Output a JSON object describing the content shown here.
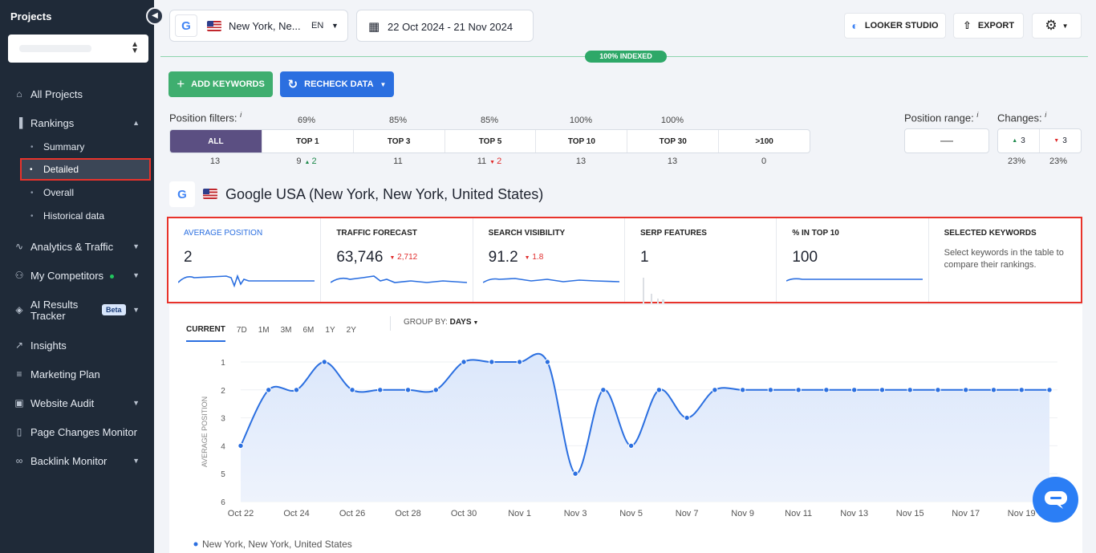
{
  "sidebar": {
    "title": "Projects",
    "items": [
      {
        "label": "All Projects",
        "icon": "home-icon"
      },
      {
        "label": "Rankings",
        "icon": "bar-chart-icon"
      },
      {
        "label": "Summary"
      },
      {
        "label": "Detailed"
      },
      {
        "label": "Overall"
      },
      {
        "label": "Historical data"
      },
      {
        "label": "Analytics & Traffic",
        "icon": "analytics-icon"
      },
      {
        "label": "My Competitors",
        "icon": "competitors-icon"
      },
      {
        "label": "AI Results",
        "label2": "Tracker",
        "badge": "Beta",
        "icon": "ai-icon"
      },
      {
        "label": "Insights",
        "icon": "insights-icon"
      },
      {
        "label": "Marketing Plan",
        "icon": "plan-icon"
      },
      {
        "label": "Website Audit",
        "icon": "audit-icon"
      },
      {
        "label": "Page Changes Monitor",
        "icon": "page-icon"
      },
      {
        "label": "Backlink Monitor",
        "icon": "link-icon"
      }
    ]
  },
  "topbar": {
    "location": "New York, Ne...",
    "lang": "EN",
    "date_range": "22 Oct 2024 - 21 Nov 2024",
    "looker": "LOOKER STUDIO",
    "export": "EXPORT",
    "indexed": "100% INDEXED"
  },
  "actions": {
    "add_keywords": "ADD KEYWORDS",
    "recheck": "RECHECK DATA"
  },
  "filters": {
    "label": "Position filters:",
    "info": "i",
    "items": [
      {
        "label": "ALL",
        "pct": "",
        "count": "13"
      },
      {
        "label": "TOP 1",
        "pct": "69%",
        "count": "9",
        "delta": "2",
        "dir": "up"
      },
      {
        "label": "TOP 3",
        "pct": "85%",
        "count": "11"
      },
      {
        "label": "TOP 5",
        "pct": "85%",
        "count": "11",
        "delta": "2",
        "dir": "down"
      },
      {
        "label": "TOP 10",
        "pct": "100%",
        "count": "13"
      },
      {
        "label": "TOP 30",
        "pct": "100%",
        "count": "13"
      },
      {
        "label": ">100",
        "pct": "",
        "count": "0"
      }
    ],
    "range_label": "Position range:",
    "range_value": "—",
    "changes_label": "Changes:",
    "changes_up": "3",
    "changes_down": "3",
    "changes_up_pct": "23%",
    "changes_down_pct": "23%"
  },
  "engine": {
    "title": "Google USA (New York, New York, United States)"
  },
  "metrics": [
    {
      "title": "AVERAGE POSITION",
      "value": "2",
      "active": true
    },
    {
      "title": "TRAFFIC FORECAST",
      "value": "63,746",
      "delta": "2,712"
    },
    {
      "title": "SEARCH VISIBILITY",
      "value": "91.2",
      "delta": "1.8"
    },
    {
      "title": "SERP FEATURES",
      "value": "1"
    },
    {
      "title": "% IN TOP 10",
      "value": "100"
    },
    {
      "title": "SELECTED KEYWORDS",
      "sub": "Select keywords in the table to compare their rankings."
    }
  ],
  "chart_tabs": [
    "CURRENT",
    "7D",
    "1M",
    "3M",
    "6M",
    "1Y",
    "2Y"
  ],
  "group_by": {
    "label": "GROUP BY:",
    "value": "DAYS"
  },
  "chart_data": {
    "type": "area",
    "ylabel": "AVERAGE POSITION",
    "ylim": [
      1,
      6
    ],
    "yticks": [
      1,
      2,
      3,
      4,
      5,
      6
    ],
    "inverted": true,
    "x": [
      "Oct 22",
      "Oct 23",
      "Oct 24",
      "Oct 25",
      "Oct 26",
      "Oct 27",
      "Oct 28",
      "Oct 29",
      "Oct 30",
      "Oct 31",
      "Nov 1",
      "Nov 2",
      "Nov 3",
      "Nov 4",
      "Nov 5",
      "Nov 6",
      "Nov 7",
      "Nov 8",
      "Nov 9",
      "Nov 10",
      "Nov 11",
      "Nov 12",
      "Nov 13",
      "Nov 14",
      "Nov 15",
      "Nov 16",
      "Nov 17",
      "Nov 18",
      "Nov 19",
      "Nov 20"
    ],
    "xticks": [
      "Oct 22",
      "Oct 24",
      "Oct 26",
      "Oct 28",
      "Oct 30",
      "Nov 1",
      "Nov 3",
      "Nov 5",
      "Nov 7",
      "Nov 9",
      "Nov 11",
      "Nov 13",
      "Nov 15",
      "Nov 17",
      "Nov 19"
    ],
    "series": [
      {
        "name": "New York, New York, United States",
        "values": [
          4,
          2,
          2,
          1,
          2,
          2,
          2,
          2,
          1,
          1,
          1,
          1,
          5,
          2,
          4,
          2,
          3,
          2,
          2,
          2,
          2,
          2,
          2,
          2,
          2,
          2,
          2,
          2,
          2,
          2
        ],
        "color": "#2b6fe0"
      }
    ]
  }
}
